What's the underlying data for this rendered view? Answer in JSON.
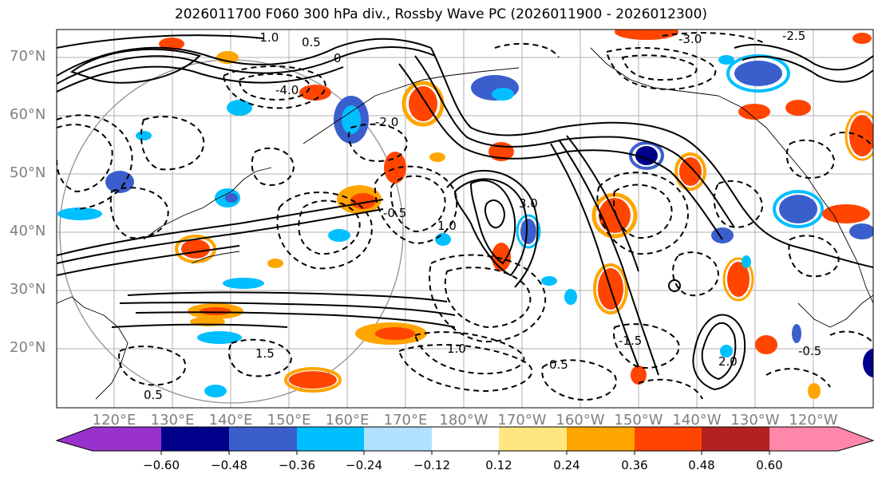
{
  "title": "2026011700 F060 300 hPa div., Rossby Wave PC (2026011900 - 2026012300)",
  "latitude_labels": [
    "70°N",
    "60°N",
    "50°N",
    "40°N",
    "30°N",
    "20°N"
  ],
  "longitude_labels": [
    "120°E",
    "130°E",
    "140°E",
    "150°E",
    "160°E",
    "170°E",
    "180°W",
    "170°W",
    "160°W",
    "150°W",
    "140°W",
    "130°W",
    "120°W"
  ],
  "colorbar": {
    "tick_labels": [
      "−0.60",
      "−0.48",
      "−0.36",
      "−0.24",
      "−0.12",
      "0.12",
      "0.24",
      "0.36",
      "0.48",
      "0.60"
    ],
    "colors": [
      "#9932cc",
      "#00008b",
      "#3a5fcd",
      "#00bfff",
      "#b0e2ff",
      "#ffffff",
      "#ffe680",
      "#ffa500",
      "#ff4500",
      "#b22222",
      "#ff88aa"
    ]
  },
  "contour_labels": [
    "-1.0",
    "0.5",
    "-3.0",
    "0",
    "-4.0",
    "1.0",
    "-1.5",
    "1.5",
    "-0.5",
    "-2.0",
    "2.0",
    "3.0",
    "-2.5"
  ],
  "colors": {
    "contour": "#000000",
    "grid": "#b0b0b0",
    "axis_label": "#808080"
  }
}
